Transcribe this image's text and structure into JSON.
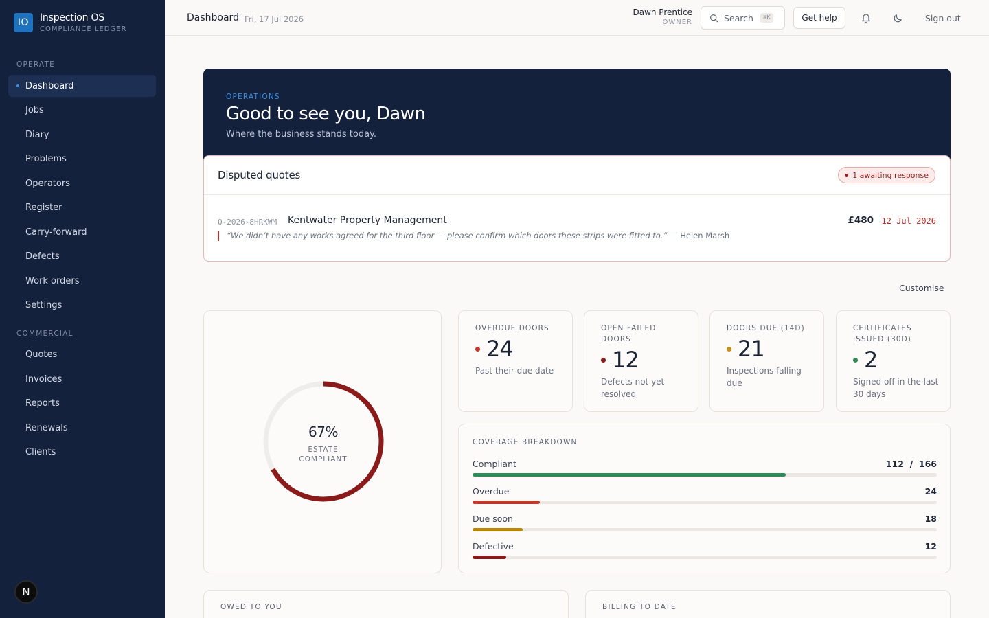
{
  "brand": {
    "logo": "IO",
    "name": "Inspection OS",
    "subtitle": "COMPLIANCE LEDGER"
  },
  "sidebar": {
    "sections": [
      {
        "label": "OPERATE",
        "items": [
          "Dashboard",
          "Jobs",
          "Diary",
          "Problems",
          "Operators",
          "Register",
          "Carry-forward",
          "Defects",
          "Work orders",
          "Settings"
        ]
      },
      {
        "label": "COMMERCIAL",
        "items": [
          "Quotes",
          "Invoices",
          "Reports",
          "Renewals",
          "Clients"
        ]
      }
    ],
    "active": "Dashboard",
    "avatar_initial": "N"
  },
  "header": {
    "title": "Dashboard",
    "date": "Fri, 17 Jul 2026",
    "user_name": "Dawn Prentice",
    "user_role": "OWNER",
    "search_label": "Search",
    "search_shortcut": "⌘K",
    "help_label": "Get help",
    "signout_label": "Sign out",
    "icons": [
      "search-icon",
      "bell-icon",
      "moon-icon"
    ]
  },
  "hero": {
    "kicker": "OPERATIONS",
    "title": "Good to see you, Dawn",
    "subtitle": "Where the business stands today."
  },
  "disputes": {
    "title": "Disputed quotes",
    "badge": "1 awaiting response",
    "items": [
      {
        "ref": "Q-2026-8HRKWM",
        "client": "Kentwater Property Management",
        "quote": "“We didn’t have any works agreed for the third floor — please confirm which doors these strips were fitted to.”",
        "author": " — Helen Marsh",
        "amount": "£480",
        "date": "12 Jul 2026"
      }
    ]
  },
  "customise_label": "Customise",
  "compliance": {
    "percent": 0.67,
    "value_label": "67%",
    "caption_1": "ESTATE",
    "caption_2": "COMPLIANT",
    "ring_color": "#8b1a1a"
  },
  "stats": [
    {
      "label": "OVERDUE DOORS",
      "value": "24",
      "desc": "Past their due date",
      "dot_color": "#c0392b"
    },
    {
      "label": "OPEN FAILED DOORS",
      "value": "12",
      "desc": "Defects not yet resolved",
      "dot_color": "#8b1a1a"
    },
    {
      "label": "DOORS DUE (14D)",
      "value": "21",
      "desc": "Inspections falling due",
      "dot_color": "#c8901a"
    },
    {
      "label": "CERTIFICATES ISSUED (30D)",
      "value": "2",
      "desc": "Signed off in the last 30 days",
      "dot_color": "#2e8b57"
    }
  ],
  "coverage": {
    "title": "COVERAGE BREAKDOWN",
    "total": 166,
    "rows": [
      {
        "name": "Compliant",
        "display": "112  /  166",
        "value": 112,
        "color": "#2e8b57"
      },
      {
        "name": "Overdue",
        "display": "24",
        "value": 24,
        "color": "#c0392b"
      },
      {
        "name": "Due soon",
        "display": "18",
        "value": 18,
        "color": "#b8860b"
      },
      {
        "name": "Defective",
        "display": "12",
        "value": 12,
        "color": "#8b1a1a"
      }
    ]
  },
  "bottom_cards": [
    {
      "title": "OWED TO YOU"
    },
    {
      "title": "BILLING TO DATE"
    }
  ]
}
